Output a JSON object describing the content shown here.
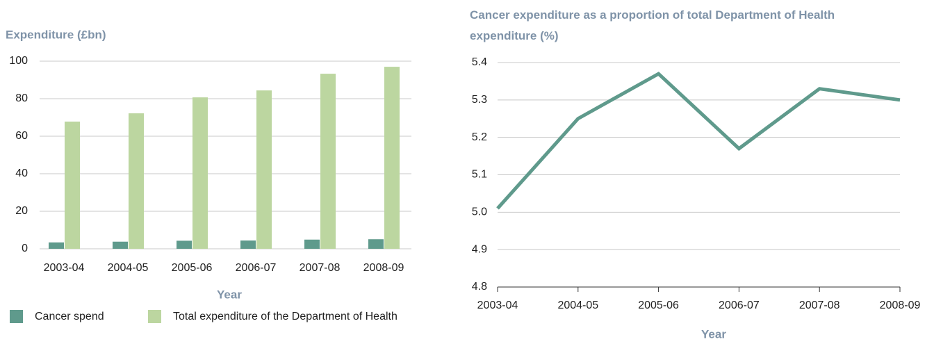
{
  "chart_data": [
    {
      "type": "bar",
      "title": "Expenditure (£bn)",
      "x_label": "Year",
      "categories": [
        "2003-04",
        "2004-05",
        "2005-06",
        "2006-07",
        "2007-08",
        "2008-09"
      ],
      "series": [
        {
          "name": "Cancer spend",
          "color": "#5f9a8c",
          "values": [
            3.4,
            3.8,
            4.3,
            4.4,
            4.9,
            5.1
          ]
        },
        {
          "name": "Total expenditure of the Department of Health",
          "color": "#bcd6a0",
          "values": [
            67.8,
            72.2,
            80.7,
            84.4,
            93.3,
            97
          ]
        }
      ],
      "ylim": [
        0,
        100
      ],
      "yticks": [
        0,
        20,
        40,
        60,
        80,
        100
      ],
      "grid": true,
      "legend": "bottom-left"
    },
    {
      "type": "line",
      "title": "Cancer expenditure as a proportion of total Department of Health expenditure (%)",
      "x_label": "Year",
      "categories": [
        "2003-04",
        "2004-05",
        "2005-06",
        "2006-07",
        "2007-08",
        "2008-09"
      ],
      "series": [
        {
          "color": "#5f9a8c",
          "values": [
            5.01,
            5.25,
            5.37,
            5.17,
            5.33,
            5.3
          ]
        }
      ],
      "ylim": [
        4.8,
        5.4
      ],
      "yticks": [
        4.8,
        4.9,
        {
          "value": 5,
          "label": "5.0"
        },
        5.1,
        5.2,
        5.3,
        5.4
      ],
      "grid": true
    }
  ]
}
